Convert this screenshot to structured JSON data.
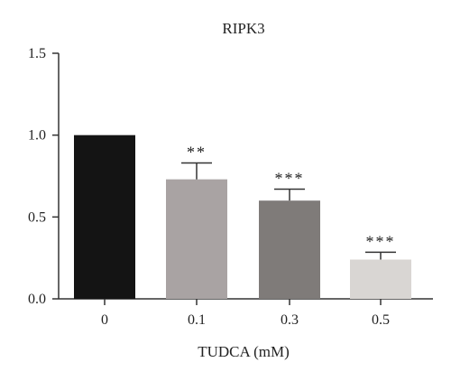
{
  "chart_data": {
    "type": "bar",
    "title": "RIPK3",
    "xlabel": "TUDCA (mM)",
    "ylabel": "",
    "ylim": [
      0,
      1.5
    ],
    "yticks": [
      "0.0",
      "0.5",
      "1.0",
      "1.5"
    ],
    "ytick_values": [
      0,
      0.5,
      1.0,
      1.5
    ],
    "categories": [
      "0",
      "0.1",
      "0.3",
      "0.5"
    ],
    "values": [
      1.0,
      0.73,
      0.6,
      0.24
    ],
    "errors": [
      0,
      0.1,
      0.07,
      0.045
    ],
    "significance": [
      "",
      "**",
      "***",
      "***"
    ],
    "bar_colors": [
      "#141414",
      "#a9a3a3",
      "#7f7b79",
      "#d9d6d3"
    ],
    "grid": false,
    "legend": "none"
  }
}
